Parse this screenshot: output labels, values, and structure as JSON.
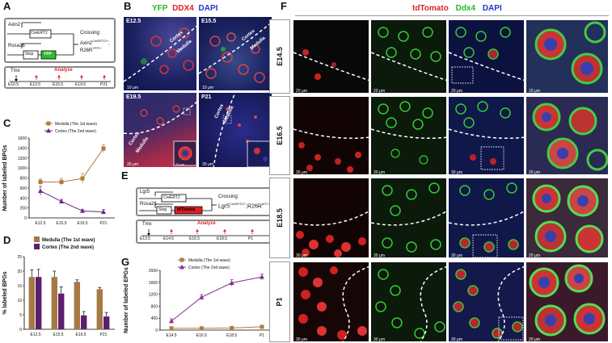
{
  "panels": {
    "a": {
      "label": "A"
    },
    "b": {
      "label": "B"
    },
    "c": {
      "label": "C"
    },
    "d": {
      "label": "D"
    },
    "e": {
      "label": "E"
    },
    "f": {
      "label": "F"
    },
    "g": {
      "label": "G"
    }
  },
  "schematic_a": {
    "gene1": "Axin2",
    "driver1": "CreERT2",
    "gene2": "Rosa26",
    "stop": "Stop",
    "reporter": "YFP",
    "crossing": "Crossing:",
    "cross_result_a": "Axin2",
    "cross_result_a_sup": "CreERT2/+",
    "cross_result_b": "R26R",
    "cross_result_b_sup": "YFP/+",
    "tmx": "Tmx",
    "analyze": "Analyze",
    "timepoints": [
      "E10.5",
      "E12.5",
      "E15.5",
      "E19.5",
      "P21"
    ]
  },
  "schematic_e": {
    "gene1": "Lgr5",
    "driver1": "CreERT2",
    "gene2": "Rosa26",
    "stop": "Stop",
    "reporter": "tdTomato",
    "crossing": "Crossing:",
    "cross_result_a": "Lgr5",
    "cross_result_a_sup": "CreERT2/+",
    "cross_result_b": "R26R",
    "cross_result_b_sup": "tdT/+",
    "tmx": "Tmx",
    "analyze": "Analyze",
    "timepoints": [
      "E13.5",
      "E14.5",
      "E16.5",
      "E18.5",
      "P1"
    ]
  },
  "panel_b": {
    "legend": {
      "yfp": "YFP",
      "ddx4": "DDX4",
      "dapi": "DAPI"
    },
    "tiles": [
      {
        "stage": "E12.5",
        "cortex": "Cortex",
        "medulla": "Medulla",
        "scale": "10 μm"
      },
      {
        "stage": "E15.5",
        "cortex": "Cortex",
        "medulla": "Medulla",
        "scale": "10 μm"
      },
      {
        "stage": "E19.5",
        "cortex": "Cortex",
        "medulla": "Medulla",
        "scale": "30 μm",
        "inset_scale": "10 μm"
      },
      {
        "stage": "P21",
        "cortex": "Cortex",
        "medulla": "Medulla",
        "scale": "30 μm"
      }
    ]
  },
  "panel_f": {
    "legend": {
      "tdtomato": "tdTomato",
      "ddx4": "Ddx4",
      "dapi": "DAPI"
    },
    "rows": [
      {
        "stage": "E14.5",
        "scales": [
          "20 μm",
          "20 μm",
          "20 μm",
          "10 μm"
        ]
      },
      {
        "stage": "E16.5",
        "scales": [
          "30 μm",
          "30 μm",
          "30 μm",
          "20 μm"
        ]
      },
      {
        "stage": "E18.5",
        "scales": [
          "30 μm",
          "30 μm",
          "30 μm",
          "20 μm"
        ]
      },
      {
        "stage": "P1",
        "scales": [
          "30 μm",
          "30 μm",
          "30 μm",
          "20 μm"
        ]
      }
    ]
  },
  "chart_data": [
    {
      "type": "line",
      "panel": "C",
      "categories": [
        "E12.5",
        "E15.5",
        "E19.5",
        "P21"
      ],
      "ylabel": "Number of labeled BPGs",
      "ylim": [
        0,
        1600
      ],
      "yticks": [
        0,
        200,
        400,
        600,
        800,
        1000,
        1200,
        1400,
        1600
      ],
      "legend_position": "top-right",
      "series": [
        {
          "name": "Medulla (The 1st wave)",
          "color": "#b07a3c",
          "marker": "square",
          "values": [
            720,
            720,
            790,
            1390
          ],
          "errors": [
            60,
            70,
            100,
            80
          ]
        },
        {
          "name": "Cortex (The 2nd wave)",
          "color": "#6a2a86",
          "marker": "triangle",
          "values": [
            540,
            330,
            140,
            120
          ],
          "errors": [
            90,
            40,
            30,
            50
          ]
        }
      ]
    },
    {
      "type": "bar",
      "panel": "D",
      "categories": [
        "E12.5",
        "E15.5",
        "E19.5",
        "P21"
      ],
      "ylabel": "% labeled BPGs",
      "ylim": [
        0,
        25
      ],
      "yticks": [
        0,
        5,
        10,
        15,
        20,
        25
      ],
      "legend_position": "top-right",
      "series": [
        {
          "name": "Medulla (The 1st wave)",
          "color": "#a67a45",
          "values": [
            18,
            18,
            16.3,
            13.8
          ],
          "errors": [
            2.5,
            2.0,
            0.7,
            0.6
          ]
        },
        {
          "name": "Cortex (The 2nd wave)",
          "color": "#5c1f6e",
          "values": [
            18,
            12.3,
            4.8,
            4.4
          ],
          "errors": [
            2.6,
            2.3,
            1.3,
            1.4
          ]
        }
      ]
    },
    {
      "type": "line",
      "panel": "G",
      "categories": [
        "E14.5",
        "E16.5",
        "E18.5",
        "P1"
      ],
      "ylabel": "Number of labeled EPGs",
      "ylim": [
        0,
        2000
      ],
      "yticks": [
        0,
        400,
        800,
        1200,
        1600,
        2000
      ],
      "legend_position": "top-left",
      "series": [
        {
          "name": "Medulla (The 1st wave)",
          "color": "#b07a3c",
          "marker": "square",
          "values": [
            60,
            60,
            70,
            110
          ],
          "errors": [
            15,
            15,
            15,
            20
          ]
        },
        {
          "name": "Cortex (The 2nd wave)",
          "color": "#8a2a96",
          "marker": "triangle",
          "values": [
            300,
            1100,
            1580,
            1780
          ],
          "errors": [
            80,
            90,
            110,
            100
          ]
        }
      ]
    }
  ]
}
